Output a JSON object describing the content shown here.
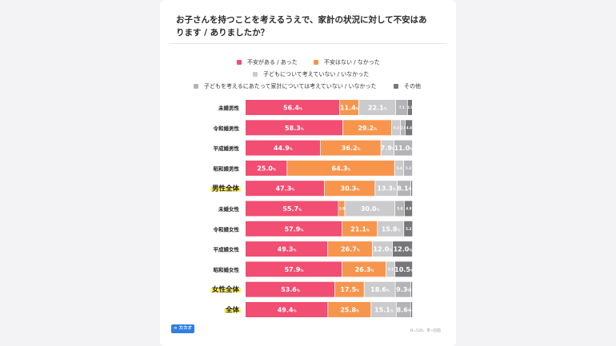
{
  "title": "お子さんを持つことを考えるうえで、家計の状況に対して不安はあります / ありましたか？",
  "footer_note": "N=530、単一回答",
  "logo_text": "∞ カカオ",
  "colors": {
    "anxious": "#f24d72",
    "not_anxious": "#f7954d",
    "no_child_thought": "#cbcbce",
    "not_considered": "#b4b4b8",
    "other": "#77777b",
    "highlight": "#fff05a"
  },
  "chart_data": {
    "type": "bar",
    "orientation": "horizontal-stacked-100",
    "categories": [
      "未婚男性",
      "令和婚男性",
      "平成婚男性",
      "昭和婚男性",
      "男性全体",
      "未婚女性",
      "令和婚女性",
      "平成婚女性",
      "昭和婚女性",
      "女性全体",
      "全体"
    ],
    "highlight_categories": [
      "男性全体",
      "女性全体",
      "全体"
    ],
    "unit": "%",
    "xlim": [
      0,
      100
    ],
    "series": [
      {
        "name": "不安がある / あった",
        "values": [
          56.4,
          58.3,
          44.9,
          25.0,
          47.3,
          55.7,
          57.9,
          49.3,
          57.9,
          53.6,
          49.4
        ]
      },
      {
        "name": "不安はない / なかった",
        "values": [
          11.4,
          29.2,
          36.2,
          64.3,
          30.3,
          3.8,
          21.1,
          26.7,
          26.3,
          17.5,
          25.8
        ]
      },
      {
        "name": "子どもについて考えていない / いなかった",
        "values": [
          22.1,
          5.3,
          7.9,
          5.4,
          13.3,
          30.0,
          15.8,
          12.0,
          5.3,
          18.6,
          15.1
        ]
      },
      {
        "name": "子どもを考えるにあたって家計については考えていない / いなかった",
        "values": [
          7.1,
          2.8,
          11.0,
          5.3,
          8.1,
          5.6,
          0.0,
          0.0,
          0.0,
          9.3,
          8.6
        ]
      },
      {
        "name": "その他",
        "values": [
          2.9,
          4.4,
          0.0,
          0.0,
          1.0,
          4.9,
          5.3,
          12.0,
          10.5,
          1.0,
          1.1
        ]
      }
    ],
    "labels": [
      [
        "56.4",
        "11.4",
        "22.1",
        "7.1",
        "2.9"
      ],
      [
        "58.3",
        "29.2",
        "5.3",
        "2.8",
        "4.4"
      ],
      [
        "44.9",
        "36.2",
        "7.9",
        "11.0",
        ""
      ],
      [
        "25.0",
        "64.3",
        "5.4",
        "5.3",
        ""
      ],
      [
        "47.3",
        "30.3",
        "13.3",
        "8.1",
        "1.0"
      ],
      [
        "55.7",
        "3.8",
        "30.0",
        "5.6",
        "4.9"
      ],
      [
        "57.9",
        "21.1",
        "15.8",
        "",
        "5.3"
      ],
      [
        "49.3",
        "26.7",
        "12.0",
        "",
        "12.0"
      ],
      [
        "57.9",
        "26.3",
        "5.3",
        "",
        "10.5"
      ],
      [
        "53.6",
        "17.5",
        "18.6",
        "9.3",
        "1.0"
      ],
      [
        "49.4",
        "25.8",
        "15.1",
        "8.6",
        "1.1"
      ]
    ],
    "legend_position": "top"
  }
}
